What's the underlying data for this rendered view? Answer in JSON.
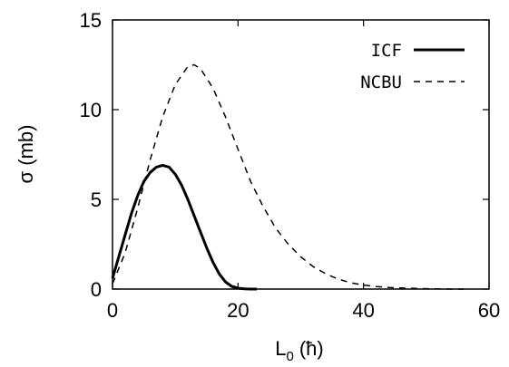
{
  "chart_data": {
    "type": "line",
    "title": "",
    "xlabel": "L",
    "xlabel_sub": "0",
    "xlabel_unit": "(ħ)",
    "ylabel": "σ (mb)",
    "xlim": [
      0,
      60
    ],
    "ylim": [
      0,
      15
    ],
    "xticks": [
      0,
      20,
      40,
      60
    ],
    "yticks": [
      0,
      5,
      10,
      15
    ],
    "grid": false,
    "legend_position": "top-right",
    "series": [
      {
        "name": "ICF",
        "style": "solid",
        "color": "#000000",
        "x": [
          0,
          1,
          2,
          3,
          4,
          5,
          6,
          7,
          8,
          9,
          10,
          11,
          12,
          13,
          14,
          15,
          16,
          17,
          18,
          19,
          20,
          21,
          22,
          23
        ],
        "y": [
          0.6,
          1.8,
          3.0,
          4.2,
          5.2,
          6.0,
          6.5,
          6.8,
          6.9,
          6.8,
          6.4,
          5.8,
          5.0,
          4.1,
          3.2,
          2.3,
          1.5,
          0.85,
          0.4,
          0.15,
          0.05,
          0.01,
          0.0,
          0.0
        ]
      },
      {
        "name": "NCBU",
        "style": "dashed",
        "color": "#000000",
        "x": [
          0,
          2,
          4,
          6,
          8,
          10,
          12,
          13,
          14,
          16,
          18,
          20,
          22,
          24,
          26,
          28,
          30,
          32,
          34,
          36,
          38,
          40,
          42,
          44,
          46,
          48,
          50,
          52,
          54,
          56
        ],
        "y": [
          0.3,
          2.0,
          4.5,
          7.2,
          9.6,
          11.4,
          12.4,
          12.5,
          12.3,
          11.2,
          9.6,
          7.8,
          6.0,
          4.6,
          3.4,
          2.5,
          1.8,
          1.25,
          0.85,
          0.55,
          0.35,
          0.22,
          0.14,
          0.09,
          0.06,
          0.04,
          0.02,
          0.01,
          0.0,
          0.0
        ]
      }
    ]
  }
}
